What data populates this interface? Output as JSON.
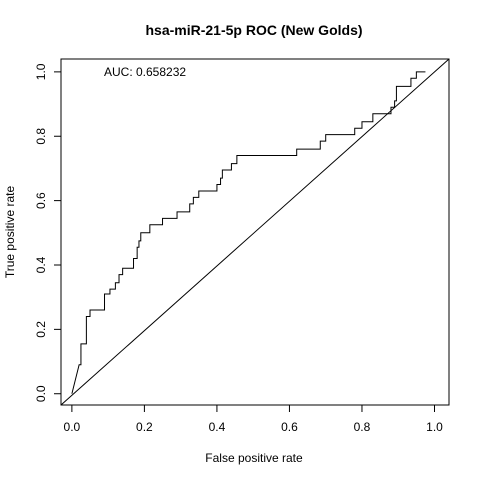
{
  "chart_data": {
    "type": "line",
    "title": "hsa-miR-21-5p ROC (New Golds)",
    "xlabel": "False positive rate",
    "ylabel": "True positive rate",
    "xlim": [
      -0.03,
      1.04
    ],
    "ylim": [
      -0.035,
      1.04
    ],
    "x_ticks": [
      "0.0",
      "0.2",
      "0.4",
      "0.6",
      "0.8",
      "1.0"
    ],
    "y_ticks": [
      "0.0",
      "0.2",
      "0.4",
      "0.6",
      "0.8",
      "1.0"
    ],
    "annotation": "AUC: 0.658232",
    "grid": false,
    "series": [
      {
        "values": [
          [
            0.0,
            0.0
          ],
          [
            0.02,
            0.09
          ],
          [
            0.025,
            0.09
          ],
          [
            0.025,
            0.155
          ],
          [
            0.04,
            0.155
          ],
          [
            0.04,
            0.24
          ],
          [
            0.05,
            0.24
          ],
          [
            0.05,
            0.26
          ],
          [
            0.09,
            0.26
          ],
          [
            0.09,
            0.31
          ],
          [
            0.105,
            0.31
          ],
          [
            0.105,
            0.325
          ],
          [
            0.12,
            0.325
          ],
          [
            0.12,
            0.345
          ],
          [
            0.13,
            0.345
          ],
          [
            0.13,
            0.37
          ],
          [
            0.14,
            0.37
          ],
          [
            0.14,
            0.39
          ],
          [
            0.17,
            0.39
          ],
          [
            0.17,
            0.42
          ],
          [
            0.18,
            0.42
          ],
          [
            0.18,
            0.455
          ],
          [
            0.185,
            0.455
          ],
          [
            0.185,
            0.475
          ],
          [
            0.19,
            0.475
          ],
          [
            0.19,
            0.5
          ],
          [
            0.215,
            0.5
          ],
          [
            0.215,
            0.525
          ],
          [
            0.25,
            0.525
          ],
          [
            0.25,
            0.545
          ],
          [
            0.29,
            0.545
          ],
          [
            0.29,
            0.565
          ],
          [
            0.325,
            0.565
          ],
          [
            0.325,
            0.59
          ],
          [
            0.335,
            0.59
          ],
          [
            0.335,
            0.61
          ],
          [
            0.35,
            0.61
          ],
          [
            0.35,
            0.63
          ],
          [
            0.4,
            0.63
          ],
          [
            0.4,
            0.65
          ],
          [
            0.41,
            0.65
          ],
          [
            0.41,
            0.67
          ],
          [
            0.415,
            0.67
          ],
          [
            0.415,
            0.695
          ],
          [
            0.44,
            0.695
          ],
          [
            0.44,
            0.715
          ],
          [
            0.455,
            0.715
          ],
          [
            0.455,
            0.74
          ],
          [
            0.62,
            0.74
          ],
          [
            0.62,
            0.76
          ],
          [
            0.685,
            0.76
          ],
          [
            0.685,
            0.785
          ],
          [
            0.7,
            0.785
          ],
          [
            0.7,
            0.805
          ],
          [
            0.78,
            0.805
          ],
          [
            0.78,
            0.825
          ],
          [
            0.8,
            0.825
          ],
          [
            0.8,
            0.845
          ],
          [
            0.83,
            0.845
          ],
          [
            0.83,
            0.87
          ],
          [
            0.88,
            0.87
          ],
          [
            0.88,
            0.89
          ],
          [
            0.89,
            0.89
          ],
          [
            0.89,
            0.91
          ],
          [
            0.895,
            0.91
          ],
          [
            0.895,
            0.955
          ],
          [
            0.935,
            0.955
          ],
          [
            0.935,
            0.98
          ],
          [
            0.95,
            0.98
          ],
          [
            0.95,
            1.0
          ],
          [
            0.975,
            1.0
          ]
        ]
      },
      {
        "values": [
          [
            -0.03,
            -0.035
          ],
          [
            1.04,
            1.04
          ]
        ]
      }
    ]
  }
}
